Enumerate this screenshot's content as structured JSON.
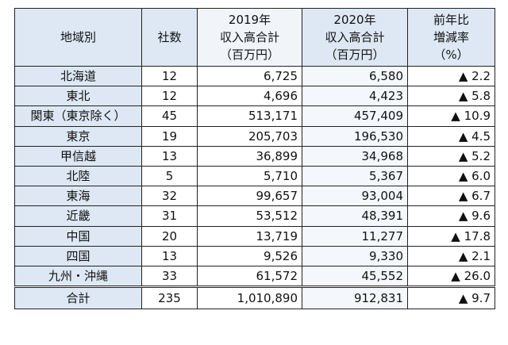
{
  "table": {
    "headers": {
      "region": "地域別",
      "companies": "社数",
      "y2019": [
        "2019年",
        "収入高合計",
        "（百万円）"
      ],
      "y2020": [
        "2020年",
        "収入高合計",
        "（百万円）"
      ],
      "change": [
        "前年比",
        "増減率",
        "（%）"
      ]
    },
    "rows": [
      {
        "region": "北海道",
        "companies": "12",
        "y2019": "6,725",
        "y2020": "6,580",
        "change": "▲ 2.2"
      },
      {
        "region": "東北",
        "companies": "12",
        "y2019": "4,696",
        "y2020": "4,423",
        "change": "▲ 5.8"
      },
      {
        "region": "関東（東京除く）",
        "companies": "45",
        "y2019": "513,171",
        "y2020": "457,409",
        "change": "▲ 10.9"
      },
      {
        "region": "東京",
        "companies": "19",
        "y2019": "205,703",
        "y2020": "196,530",
        "change": "▲ 4.5"
      },
      {
        "region": "甲信越",
        "companies": "13",
        "y2019": "36,899",
        "y2020": "34,968",
        "change": "▲ 5.2"
      },
      {
        "region": "北陸",
        "companies": "5",
        "y2019": "5,710",
        "y2020": "5,367",
        "change": "▲ 6.0"
      },
      {
        "region": "東海",
        "companies": "32",
        "y2019": "99,657",
        "y2020": "93,004",
        "change": "▲ 6.7"
      },
      {
        "region": "近畿",
        "companies": "31",
        "y2019": "53,512",
        "y2020": "48,391",
        "change": "▲ 9.6"
      },
      {
        "region": "中国",
        "companies": "20",
        "y2019": "13,719",
        "y2020": "11,277",
        "change": "▲ 17.8"
      },
      {
        "region": "四国",
        "companies": "13",
        "y2019": "9,526",
        "y2020": "9,330",
        "change": "▲ 2.1"
      },
      {
        "region": "九州・沖縄",
        "companies": "33",
        "y2019": "61,572",
        "y2020": "45,552",
        "change": "▲ 26.0"
      }
    ],
    "total": {
      "region": "合計",
      "companies": "235",
      "y2019": "1,010,890",
      "y2020": "912,831",
      "change": "▲ 9.7"
    }
  }
}
